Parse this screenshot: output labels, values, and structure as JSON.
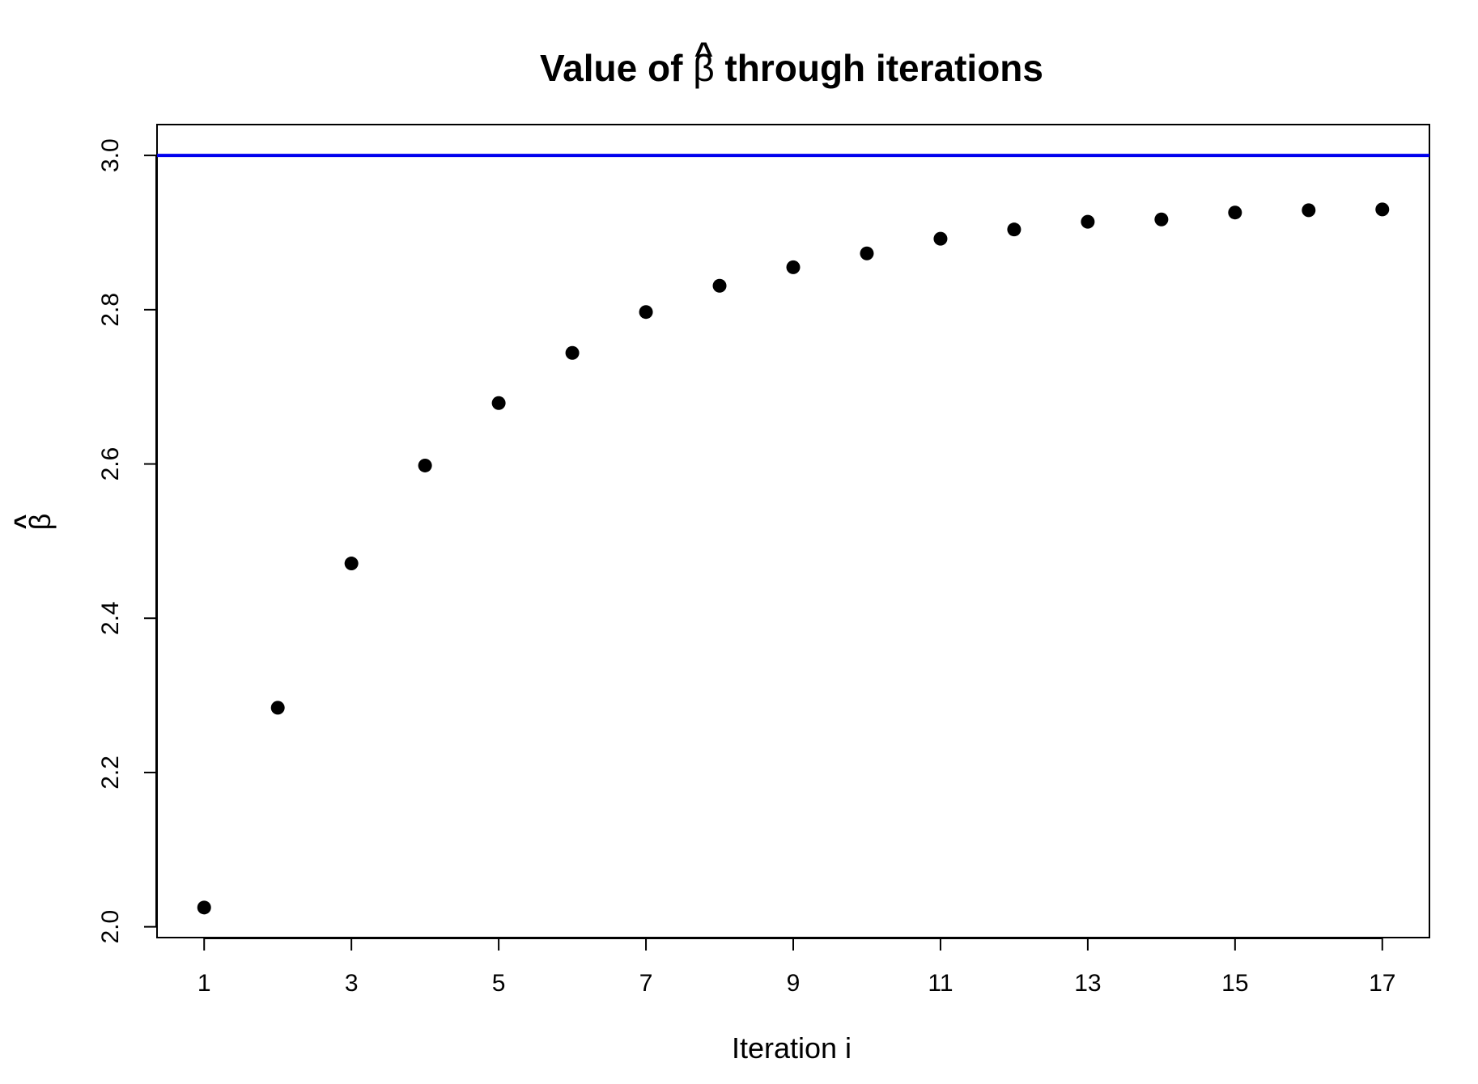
{
  "chart_data": {
    "type": "scatter",
    "title": {
      "prefix": "Value of ",
      "symbol": "β",
      "symbol_accent": "^",
      "suffix": " through iterations"
    },
    "xlabel": "Iteration i",
    "ylabel": {
      "symbol": "β",
      "symbol_accent": "^"
    },
    "x_ticks": [
      1,
      3,
      5,
      7,
      9,
      11,
      13,
      15,
      17
    ],
    "y_ticks": [
      "2.0",
      "2.2",
      "2.4",
      "2.6",
      "2.8",
      "3.0"
    ],
    "xlim": [
      0.36,
      17.64
    ],
    "ylim": [
      1.986,
      3.04
    ],
    "grid": false,
    "series": [
      {
        "x": [
          1,
          2,
          3,
          4,
          5,
          6,
          7,
          8,
          9,
          10,
          11,
          12,
          13,
          14,
          15,
          16,
          17
        ],
        "y": [
          2.025,
          2.284,
          2.471,
          2.598,
          2.679,
          2.744,
          2.797,
          2.831,
          2.855,
          2.873,
          2.892,
          2.904,
          2.914,
          2.917,
          2.926,
          2.929,
          2.93
        ],
        "color": "#000000"
      }
    ],
    "reference_line": {
      "orientation": "horizontal",
      "y": 3.0,
      "color": "#0000ee"
    }
  }
}
